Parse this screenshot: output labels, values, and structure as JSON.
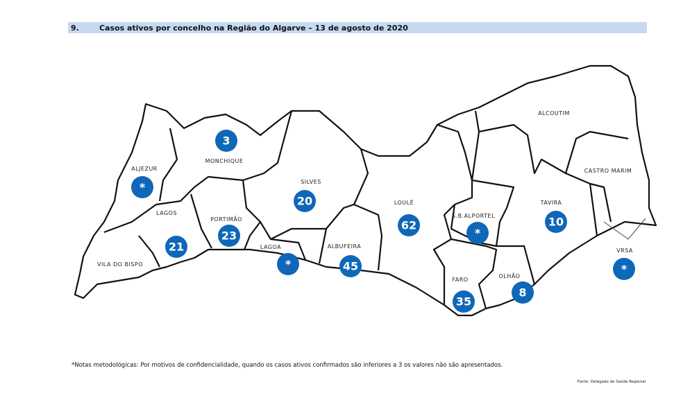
{
  "header": {
    "number": "9.",
    "title": "Casos ativos por concelho na Região do Algarve – 13 de agosto de 2020"
  },
  "regions": [
    {
      "name": "ALJEZUR",
      "value": "*"
    },
    {
      "name": "MONCHIQUE",
      "value": 3
    },
    {
      "name": "SILVES",
      "value": 20
    },
    {
      "name": "LAGOS",
      "value": 21
    },
    {
      "name": "PORTIMÃO",
      "value": 23
    },
    {
      "name": "LAGOA",
      "value": "*"
    },
    {
      "name": "VILA DO BISPO"
    },
    {
      "name": "ALBUFEIRA",
      "value": 45
    },
    {
      "name": "LOULÉ",
      "value": 62
    },
    {
      "name": "S.B.ALPORTEL",
      "value": "*"
    },
    {
      "name": "FARO",
      "value": 35
    },
    {
      "name": "OLHÃO",
      "value": 8
    },
    {
      "name": "TAVIRA",
      "value": 10
    },
    {
      "name": "ALCOUTIM"
    },
    {
      "name": "CASTRO MARIM"
    },
    {
      "name": "VRSA",
      "value": "*"
    }
  ],
  "note": "*Notas metodológicas: Por motivos de confidencialidade, quando os casos ativos confirmados são inferiores a 3 os valores não são apresentados.",
  "source": "Fonte: Delegado de Saúde Regional"
}
